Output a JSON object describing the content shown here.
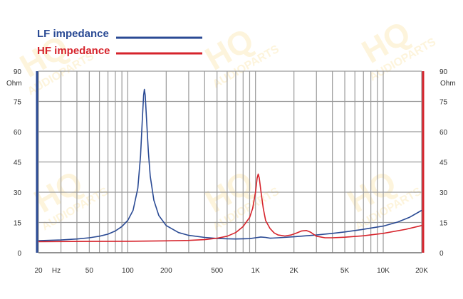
{
  "chart_data": {
    "type": "line",
    "x_scale": "log",
    "xlim": [
      20,
      20000
    ],
    "ylim": [
      0,
      90
    ],
    "grid": true,
    "legend_placement": "top-left",
    "left_axis_unit": "Ohm",
    "right_axis_unit": "Ohm",
    "x_unit": "Hz",
    "x_ticks": [
      {
        "value": 20,
        "label": "20"
      },
      {
        "value": 50,
        "label": "50"
      },
      {
        "value": 100,
        "label": "100"
      },
      {
        "value": 200,
        "label": "200"
      },
      {
        "value": 500,
        "label": "500"
      },
      {
        "value": 1000,
        "label": "1K"
      },
      {
        "value": 2000,
        "label": "2K"
      },
      {
        "value": 5000,
        "label": "5K"
      },
      {
        "value": 10000,
        "label": "10K"
      },
      {
        "value": 20000,
        "label": "20K"
      }
    ],
    "y_ticks": [
      0,
      15,
      30,
      45,
      60,
      75,
      90
    ],
    "colors": {
      "lf": "#2a4a94",
      "hf": "#d6232b",
      "grid": "#9a9a9a"
    },
    "series": [
      {
        "name": "LF impedance",
        "color": "#2a4a94",
        "points": [
          [
            20,
            6.0
          ],
          [
            30,
            6.3
          ],
          [
            40,
            6.8
          ],
          [
            50,
            7.4
          ],
          [
            60,
            8.2
          ],
          [
            70,
            9.2
          ],
          [
            80,
            10.8
          ],
          [
            90,
            13.0
          ],
          [
            100,
            16.0
          ],
          [
            110,
            21.0
          ],
          [
            120,
            32.0
          ],
          [
            126,
            48.0
          ],
          [
            130,
            66.0
          ],
          [
            133,
            78.0
          ],
          [
            135,
            81.0
          ],
          [
            137,
            78.0
          ],
          [
            140,
            67.0
          ],
          [
            145,
            50.0
          ],
          [
            150,
            38.0
          ],
          [
            160,
            26.0
          ],
          [
            175,
            18.5
          ],
          [
            200,
            13.5
          ],
          [
            250,
            10.0
          ],
          [
            300,
            8.6
          ],
          [
            400,
            7.6
          ],
          [
            500,
            7.1
          ],
          [
            600,
            6.9
          ],
          [
            700,
            6.8
          ],
          [
            800,
            6.9
          ],
          [
            900,
            7.0
          ],
          [
            1000,
            7.4
          ],
          [
            1100,
            7.8
          ],
          [
            1200,
            7.6
          ],
          [
            1300,
            7.2
          ],
          [
            1500,
            7.4
          ],
          [
            2000,
            7.9
          ],
          [
            3000,
            8.8
          ],
          [
            4000,
            9.6
          ],
          [
            5000,
            10.3
          ],
          [
            7000,
            11.6
          ],
          [
            10000,
            13.2
          ],
          [
            13000,
            15.2
          ],
          [
            16000,
            17.5
          ],
          [
            20000,
            21.0
          ]
        ]
      },
      {
        "name": "HF impedance",
        "color": "#d6232b",
        "points": [
          [
            20,
            5.5
          ],
          [
            50,
            5.6
          ],
          [
            100,
            5.7
          ],
          [
            200,
            5.9
          ],
          [
            300,
            6.1
          ],
          [
            400,
            6.5
          ],
          [
            500,
            7.2
          ],
          [
            600,
            8.2
          ],
          [
            700,
            10.0
          ],
          [
            800,
            13.0
          ],
          [
            900,
            17.5
          ],
          [
            950,
            22.0
          ],
          [
            1000,
            30.0
          ],
          [
            1030,
            37.0
          ],
          [
            1050,
            39.0
          ],
          [
            1070,
            37.0
          ],
          [
            1100,
            31.0
          ],
          [
            1150,
            22.0
          ],
          [
            1200,
            16.0
          ],
          [
            1300,
            12.0
          ],
          [
            1400,
            9.8
          ],
          [
            1500,
            8.8
          ],
          [
            1700,
            8.3
          ],
          [
            1900,
            8.8
          ],
          [
            2100,
            9.8
          ],
          [
            2300,
            10.8
          ],
          [
            2500,
            11.0
          ],
          [
            2700,
            10.2
          ],
          [
            3000,
            8.2
          ],
          [
            3500,
            7.4
          ],
          [
            4000,
            7.4
          ],
          [
            5000,
            7.7
          ],
          [
            7000,
            8.4
          ],
          [
            10000,
            9.6
          ],
          [
            15000,
            11.6
          ],
          [
            20000,
            13.5
          ]
        ]
      }
    ]
  },
  "watermark": {
    "line1": "HQ",
    "line2": "AUDIOPARTS"
  }
}
